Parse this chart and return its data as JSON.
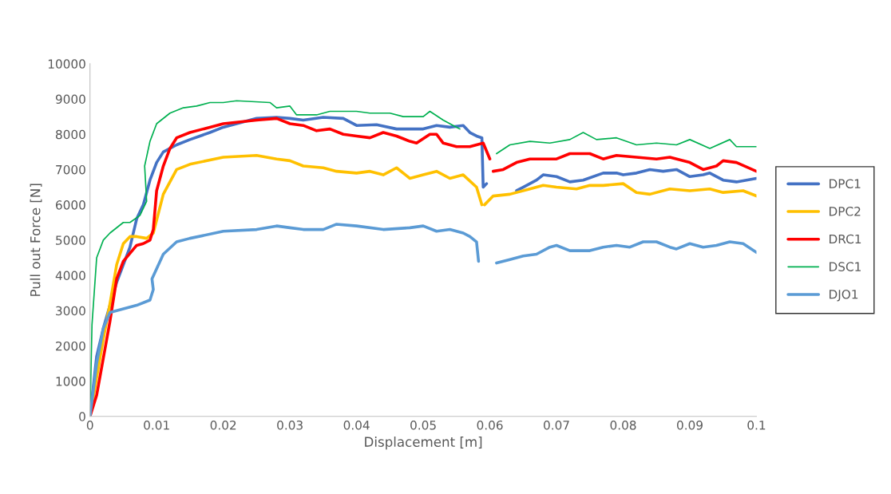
{
  "chart_data": {
    "type": "line",
    "xlabel": "Displacement [m]",
    "ylabel": "Pull out Force [N]",
    "xlim": [
      0,
      0.1
    ],
    "xticks": [
      0,
      0.01,
      0.02,
      0.03,
      0.04,
      0.05,
      0.06,
      0.07,
      0.08,
      0.09,
      0.1
    ],
    "ylim": [
      0,
      10000
    ],
    "yticks": [
      0,
      1000,
      2000,
      3000,
      4000,
      5000,
      6000,
      7000,
      8000,
      9000,
      10000
    ],
    "grid": false,
    "legend": "right",
    "marker": "none",
    "line_style": "solid",
    "series": [
      {
        "name": "DPC1",
        "color": "#4472c4",
        "x": [
          0,
          0.001,
          0.002,
          0.004,
          0.006,
          0.007,
          0.008,
          0.009,
          0.01,
          0.011,
          0.013,
          0.015,
          0.018,
          0.02,
          0.025,
          0.028,
          0.03,
          0.032,
          0.035,
          0.038,
          0.04,
          0.043,
          0.046,
          0.048,
          0.05,
          0.052,
          0.054,
          0.056,
          0.057,
          0.058,
          0.0588,
          0.059,
          0.0595,
          0.062,
          0.064,
          0.065,
          0.067,
          0.068,
          0.07,
          0.072,
          0.074,
          0.077,
          0.079,
          0.08,
          0.082,
          0.084,
          0.086,
          0.088,
          0.09,
          0.092,
          0.093,
          0.095,
          0.097,
          0.1
        ],
        "values": [
          0,
          1700,
          2500,
          3800,
          4800,
          5600,
          6000,
          6700,
          7200,
          7500,
          7700,
          7850,
          8050,
          8200,
          8450,
          8480,
          8450,
          8400,
          8480,
          8450,
          8250,
          8270,
          8150,
          8150,
          8150,
          8250,
          8200,
          8250,
          8050,
          7950,
          7900,
          6500,
          6600,
          null,
          6400,
          6500,
          6700,
          6850,
          6800,
          6650,
          6700,
          6900,
          6900,
          6850,
          6900,
          7000,
          6950,
          7000,
          6800,
          6850,
          6900,
          6700,
          6650,
          6750
        ]
      },
      {
        "name": "DPC2",
        "color": "#ffc000",
        "x": [
          0,
          0.002,
          0.003,
          0.004,
          0.005,
          0.006,
          0.007,
          0.0085,
          0.0095,
          0.011,
          0.013,
          0.015,
          0.02,
          0.025,
          0.028,
          0.03,
          0.032,
          0.035,
          0.037,
          0.04,
          0.042,
          0.044,
          0.046,
          0.048,
          0.05,
          0.052,
          0.054,
          0.056,
          0.058,
          0.0588,
          0.059,
          0.0592,
          0.0605,
          0.063,
          0.066,
          0.068,
          0.07,
          0.073,
          0.075,
          0.077,
          0.08,
          0.082,
          0.084,
          0.087,
          0.09,
          0.093,
          0.095,
          0.098,
          0.1
        ],
        "values": [
          0,
          2200,
          3200,
          4300,
          4900,
          5100,
          5100,
          5050,
          5200,
          6300,
          7000,
          7150,
          7350,
          7400,
          7300,
          7250,
          7100,
          7050,
          6950,
          6900,
          6950,
          6850,
          7050,
          6750,
          6850,
          6950,
          6750,
          6850,
          6500,
          6000,
          null,
          6000,
          6250,
          6300,
          6450,
          6550,
          6500,
          6450,
          6550,
          6550,
          6600,
          6350,
          6300,
          6450,
          6400,
          6450,
          6350,
          6400,
          6250
        ]
      },
      {
        "name": "DRC1",
        "color": "#ff0000",
        "x": [
          0,
          0.001,
          0.003,
          0.004,
          0.005,
          0.007,
          0.008,
          0.009,
          0.0095,
          0.01,
          0.011,
          0.012,
          0.013,
          0.015,
          0.018,
          0.02,
          0.025,
          0.028,
          0.03,
          0.032,
          0.034,
          0.036,
          0.038,
          0.04,
          0.042,
          0.044,
          0.046,
          0.048,
          0.049,
          0.051,
          0.052,
          0.053,
          0.055,
          0.057,
          0.059,
          0.06,
          0.0603,
          0.0605,
          0.062,
          0.064,
          0.066,
          0.07,
          0.072,
          0.075,
          0.077,
          0.079,
          0.082,
          0.085,
          0.087,
          0.09,
          0.092,
          0.094,
          0.095,
          0.097,
          0.1
        ],
        "values": [
          0,
          600,
          2700,
          3900,
          4400,
          4850,
          4900,
          5000,
          5300,
          6400,
          7100,
          7600,
          7900,
          8050,
          8200,
          8300,
          8400,
          8450,
          8300,
          8250,
          8100,
          8150,
          8000,
          7950,
          7900,
          8050,
          7950,
          7800,
          7750,
          8000,
          8000,
          7750,
          7650,
          7650,
          7750,
          7300,
          null,
          6950,
          7000,
          7200,
          7300,
          7300,
          7450,
          7450,
          7300,
          7400,
          7350,
          7300,
          7350,
          7200,
          7000,
          7100,
          7250,
          7200,
          6950
        ]
      },
      {
        "name": "DSC1",
        "color": "#00b050",
        "x": [
          0,
          0.0003,
          0.001,
          0.002,
          0.003,
          0.005,
          0.006,
          0.0075,
          0.0085,
          0.0082,
          0.009,
          0.01,
          0.012,
          0.014,
          0.016,
          0.018,
          0.02,
          0.022,
          0.027,
          0.028,
          0.03,
          0.031,
          0.034,
          0.036,
          0.04,
          0.042,
          0.045,
          0.047,
          0.05,
          0.051,
          0.053,
          0.055,
          0.0555,
          0.058,
          0.061,
          0.063,
          0.066,
          0.069,
          0.072,
          0.074,
          0.076,
          0.079,
          0.082,
          0.085,
          0.088,
          0.09,
          0.093,
          0.096,
          0.097,
          0.1
        ],
        "values": [
          0,
          2600,
          4500,
          5000,
          5200,
          5500,
          5500,
          5700,
          6100,
          7100,
          7800,
          8300,
          8600,
          8750,
          8800,
          8900,
          8900,
          8950,
          8900,
          8750,
          8800,
          8550,
          8550,
          8650,
          8650,
          8600,
          8600,
          8500,
          8500,
          8650,
          8400,
          8200,
          8150,
          null,
          7450,
          7700,
          7800,
          7750,
          7850,
          8050,
          7850,
          7900,
          7700,
          7750,
          7700,
          7850,
          7600,
          7850,
          7650,
          7650
        ]
      },
      {
        "name": "DJO1",
        "color": "#5b9bd5",
        "x": [
          0,
          0.001,
          0.002,
          0.003,
          0.005,
          0.007,
          0.009,
          0.0095,
          0.0093,
          0.011,
          0.013,
          0.015,
          0.02,
          0.025,
          0.028,
          0.03,
          0.032,
          0.035,
          0.037,
          0.04,
          0.044,
          0.048,
          0.05,
          0.052,
          0.054,
          0.056,
          0.057,
          0.058,
          0.0583,
          0.06,
          0.061,
          0.063,
          0.065,
          0.067,
          0.069,
          0.07,
          0.072,
          0.075,
          0.077,
          0.079,
          0.081,
          0.083,
          0.085,
          0.087,
          0.088,
          0.09,
          0.092,
          0.094,
          0.096,
          0.098,
          0.1
        ],
        "values": [
          0,
          1500,
          2500,
          2950,
          3050,
          3150,
          3300,
          3600,
          3900,
          4600,
          4950,
          5050,
          5250,
          5300,
          5400,
          5350,
          5300,
          5300,
          5450,
          5400,
          5300,
          5350,
          5400,
          5250,
          5300,
          5200,
          5100,
          4950,
          4400,
          null,
          4350,
          4450,
          4550,
          4600,
          4800,
          4850,
          4700,
          4700,
          4800,
          4850,
          4800,
          4950,
          4950,
          4800,
          4750,
          4900,
          4800,
          4850,
          4950,
          4900,
          4650
        ]
      }
    ]
  }
}
